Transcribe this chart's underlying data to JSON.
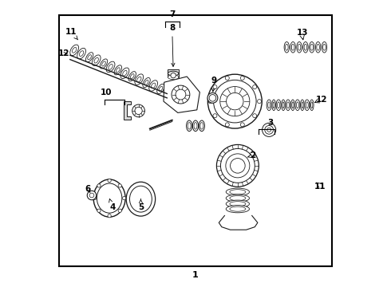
{
  "background_color": "#ffffff",
  "border_color": "#000000",
  "border_linewidth": 1.5,
  "fig_width": 4.9,
  "fig_height": 3.6,
  "dpi": 100,
  "image_color": "#1a1a1a",
  "font_size_labels": 7.5,
  "font_size_bottom": 8
}
